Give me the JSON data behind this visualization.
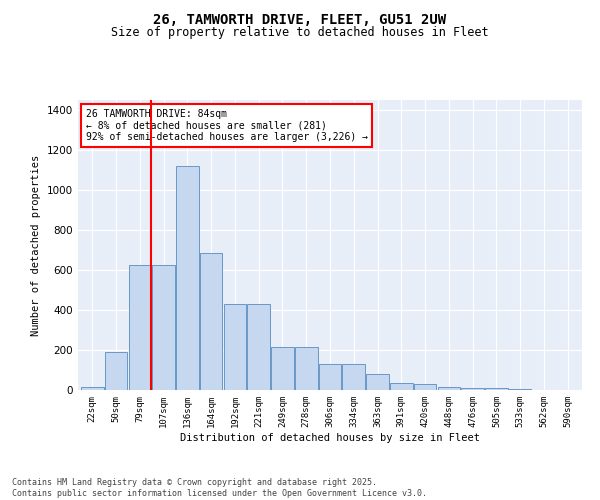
{
  "title_line1": "26, TAMWORTH DRIVE, FLEET, GU51 2UW",
  "title_line2": "Size of property relative to detached houses in Fleet",
  "xlabel": "Distribution of detached houses by size in Fleet",
  "ylabel": "Number of detached properties",
  "categories": [
    "22sqm",
    "50sqm",
    "79sqm",
    "107sqm",
    "136sqm",
    "164sqm",
    "192sqm",
    "221sqm",
    "249sqm",
    "278sqm",
    "306sqm",
    "334sqm",
    "363sqm",
    "391sqm",
    "420sqm",
    "448sqm",
    "476sqm",
    "505sqm",
    "533sqm",
    "562sqm",
    "590sqm"
  ],
  "values": [
    15,
    190,
    625,
    625,
    1120,
    685,
    430,
    430,
    215,
    215,
    130,
    130,
    80,
    35,
    30,
    15,
    12,
    8,
    4,
    2,
    2
  ],
  "bar_color": "#c5d8f0",
  "bar_edge_color": "#6898c8",
  "vline_color": "red",
  "annotation_text": "26 TAMWORTH DRIVE: 84sqm\n← 8% of detached houses are smaller (281)\n92% of semi-detached houses are larger (3,226) →",
  "annotation_box_color": "white",
  "annotation_box_edge": "red",
  "ylim": [
    0,
    1450
  ],
  "yticks": [
    0,
    200,
    400,
    600,
    800,
    1000,
    1200,
    1400
  ],
  "bg_color": "#e8eef8",
  "footer_line1": "Contains HM Land Registry data © Crown copyright and database right 2025.",
  "footer_line2": "Contains public sector information licensed under the Open Government Licence v3.0."
}
